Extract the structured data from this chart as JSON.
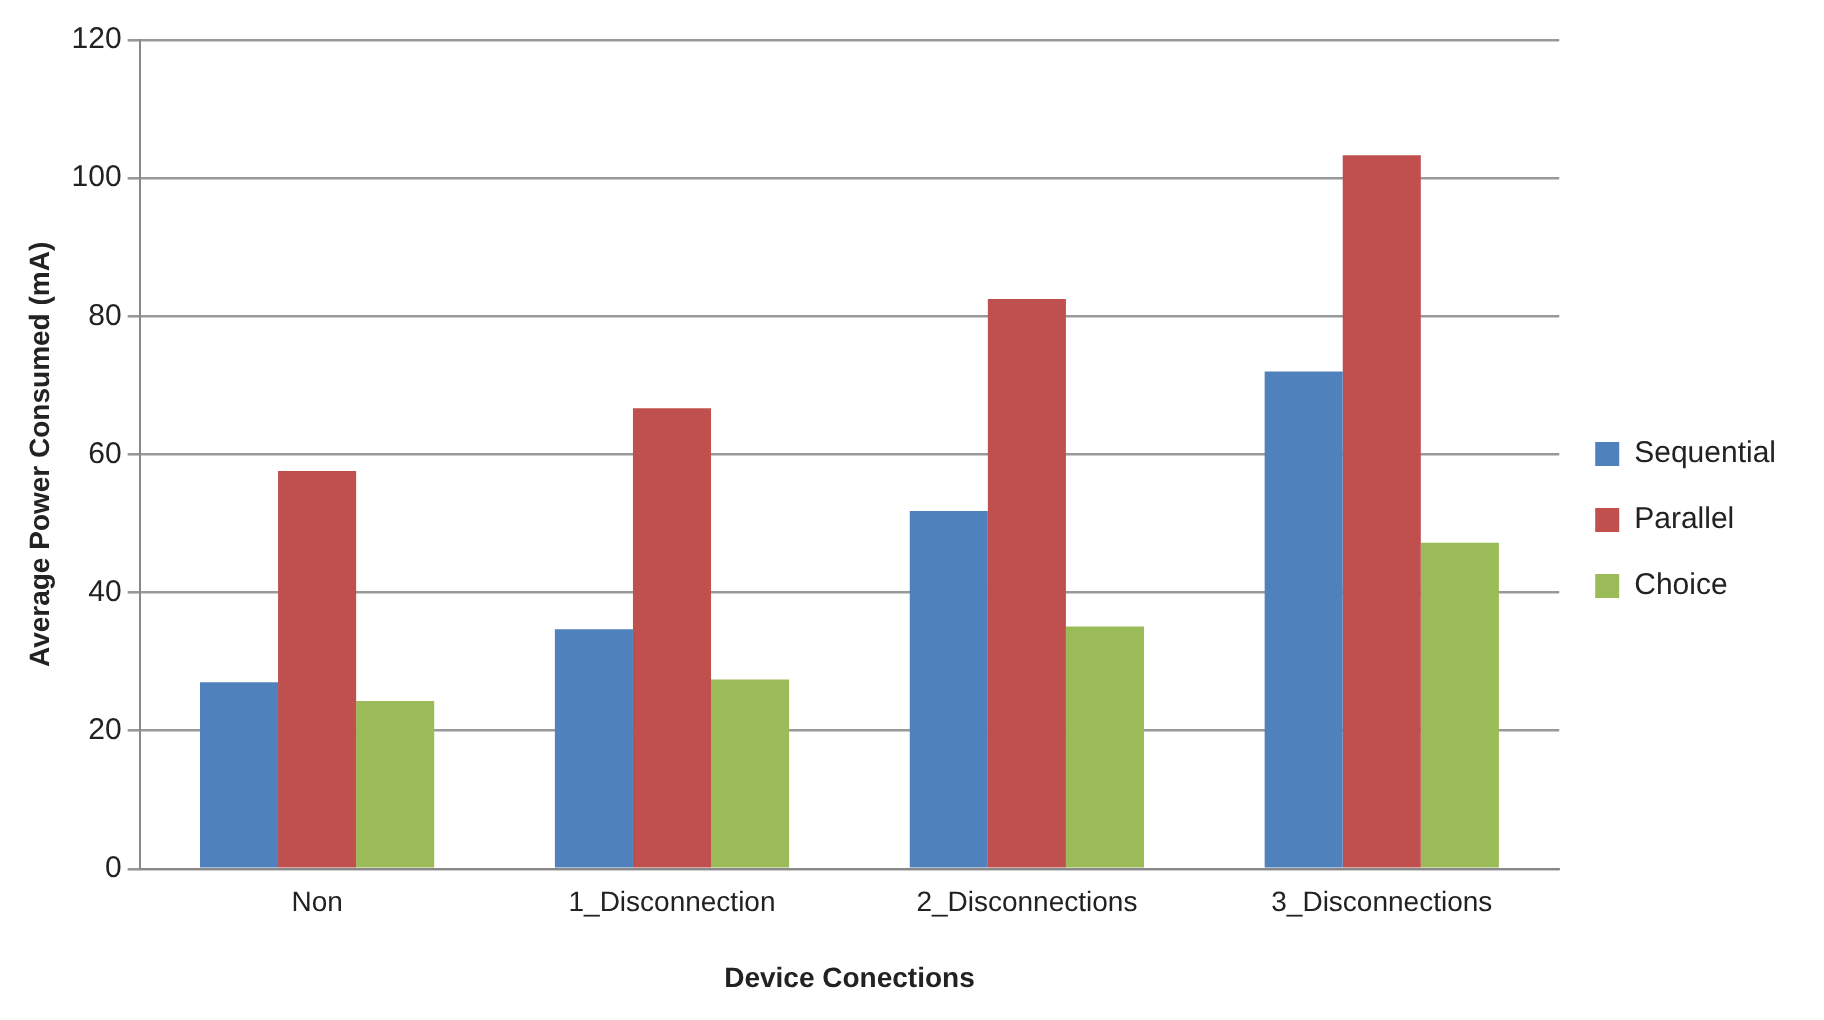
{
  "chart_data": {
    "type": "bar",
    "xlabel": "Device Conections",
    "ylabel": "Average Power Consumed (mA)",
    "categories": [
      "Non",
      "1_Disconnection",
      "2_Disconnections",
      "3_Disconnections"
    ],
    "series": [
      {
        "name": "Sequential",
        "color": "#4f81bd",
        "values": [
          27,
          34.7,
          51.8,
          72
        ]
      },
      {
        "name": "Parallel",
        "color": "#c0504d",
        "values": [
          57.6,
          66.7,
          82.5,
          103.3
        ]
      },
      {
        "name": "Choice",
        "color": "#9bbb59",
        "values": [
          24.3,
          27.4,
          35.1,
          47.2
        ]
      }
    ],
    "ylim": [
      0,
      120
    ],
    "yticks": [
      0,
      20,
      40,
      60,
      80,
      100,
      120
    ],
    "grid": "y",
    "legend": "right"
  }
}
